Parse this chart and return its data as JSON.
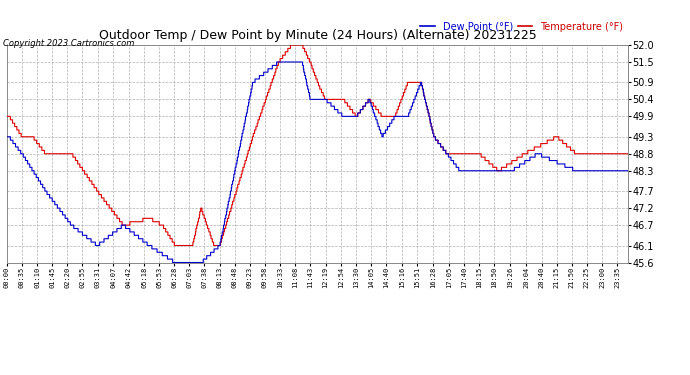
{
  "title": "Outdoor Temp / Dew Point by Minute (24 Hours) (Alternate) 20231225",
  "copyright": "Copyright 2023 Cartronics.com",
  "legend_dew": "Dew Point (°F)",
  "legend_temp": "Temperature (°F)",
  "legend_dew_color": "#0000cc",
  "legend_temp_color": "#cc0000",
  "background_color": "#ffffff",
  "plot_bg_color": "#ffffff",
  "title_color": "#000000",
  "copyright_color": "#000000",
  "grid_color": "#aaaaaa",
  "tick_color": "#000000",
  "temp_color": "#dd0000",
  "dew_color": "#0000cc",
  "ylim": [
    45.6,
    52.0
  ],
  "yticks": [
    45.6,
    46.1,
    46.7,
    47.2,
    47.7,
    48.3,
    48.8,
    49.3,
    49.9,
    50.4,
    50.9,
    51.5,
    52.0
  ],
  "xtick_labels": [
    "00:00",
    "00:35",
    "01:10",
    "01:45",
    "02:20",
    "02:55",
    "03:31",
    "04:07",
    "04:42",
    "05:18",
    "05:53",
    "06:28",
    "07:03",
    "07:38",
    "08:13",
    "08:48",
    "09:23",
    "09:58",
    "10:33",
    "11:08",
    "11:43",
    "12:19",
    "12:54",
    "13:30",
    "14:05",
    "14:40",
    "15:16",
    "15:51",
    "16:28",
    "17:05",
    "17:40",
    "18:15",
    "18:50",
    "19:26",
    "20:04",
    "20:40",
    "21:15",
    "21:50",
    "22:25",
    "23:00",
    "23:35"
  ],
  "num_points": 1440
}
